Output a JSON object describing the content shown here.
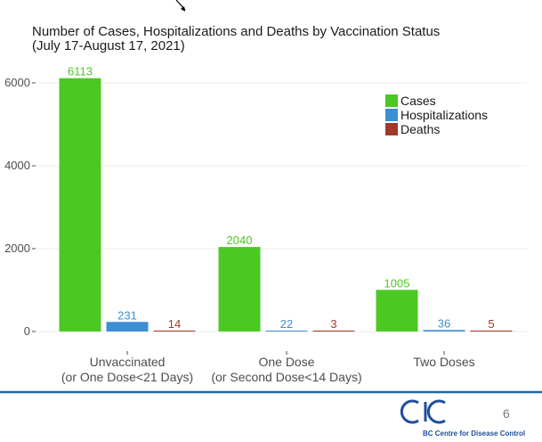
{
  "chart_data": {
    "type": "bar",
    "title": "Number of Cases, Hospitalizations and Deaths by Vaccination Status",
    "subtitle": "(July 17-August 17, 2021)",
    "xlabel": "",
    "ylabel": "",
    "ylim": [
      0,
      6500
    ],
    "yticks": [
      0,
      2000,
      4000,
      6000
    ],
    "grid": true,
    "legend_position": "top-right",
    "categories": [
      [
        "Unvaccinated",
        "(or One Dose<21 Days)"
      ],
      [
        "One Dose",
        "(or Second Dose<14 Days)"
      ],
      [
        "Two Doses"
      ]
    ],
    "series": [
      {
        "name": "Cases",
        "color": "#4cc823",
        "values": [
          6113,
          2040,
          1005
        ]
      },
      {
        "name": "Hospitalizations",
        "color": "#3d8fd4",
        "values": [
          231,
          22,
          36
        ]
      },
      {
        "name": "Deaths",
        "color": "#a0392a",
        "values": [
          14,
          3,
          5
        ]
      }
    ]
  },
  "footer": {
    "page_number": "6",
    "org_name": "BC Centre for Disease Control",
    "accent_color": "#1f6aa8"
  },
  "icons": {
    "logo": "bccdc-logo-icon",
    "arrow": "arrow-pointer-icon"
  }
}
